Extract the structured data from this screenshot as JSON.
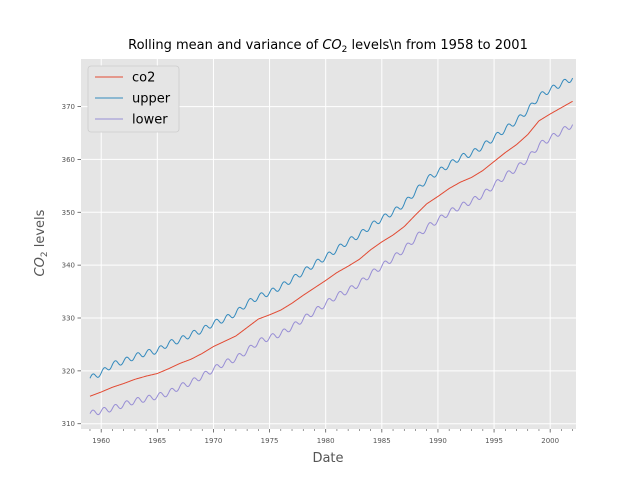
{
  "chart_data": {
    "type": "line",
    "title": {
      "prefix": "Rolling mean and variance of ",
      "italic": "CO",
      "subscript": "2",
      "suffix": " levels\\n from 1958 to 2001"
    },
    "xlabel": "Date",
    "ylabel": {
      "italic": "CO",
      "subscript": "2",
      "suffix": " levels"
    },
    "xlim": [
      1958.2,
      2002.3
    ],
    "ylim": [
      309,
      379
    ],
    "x_ticks": [
      1960,
      1965,
      1970,
      1975,
      1980,
      1985,
      1990,
      1995,
      2000
    ],
    "x_tick_labels": [
      "1960",
      "1965",
      "1970",
      "1975",
      "1980",
      "1985",
      "1990",
      "1995",
      "2000"
    ],
    "y_ticks": [
      310,
      320,
      330,
      340,
      350,
      360,
      370
    ],
    "y_tick_labels": [
      "310",
      "320",
      "330",
      "340",
      "350",
      "360",
      "370"
    ],
    "grid": true,
    "legend_position": "top-left",
    "series": [
      {
        "name": "co2",
        "color": "#E24A33",
        "points": [
          [
            1959.0,
            315.2
          ],
          [
            1960.0,
            316.0
          ],
          [
            1961.0,
            316.9
          ],
          [
            1962.0,
            317.6
          ],
          [
            1963.0,
            318.4
          ],
          [
            1964.0,
            319.0
          ],
          [
            1965.0,
            319.5
          ],
          [
            1966.0,
            320.4
          ],
          [
            1967.0,
            321.4
          ],
          [
            1968.0,
            322.2
          ],
          [
            1969.0,
            323.3
          ],
          [
            1970.0,
            324.6
          ],
          [
            1971.0,
            325.6
          ],
          [
            1972.0,
            326.6
          ],
          [
            1973.0,
            328.2
          ],
          [
            1974.0,
            329.8
          ],
          [
            1975.0,
            330.6
          ],
          [
            1976.0,
            331.5
          ],
          [
            1977.0,
            332.8
          ],
          [
            1978.0,
            334.3
          ],
          [
            1979.0,
            335.7
          ],
          [
            1980.0,
            337.1
          ],
          [
            1981.0,
            338.6
          ],
          [
            1982.0,
            339.8
          ],
          [
            1983.0,
            341.1
          ],
          [
            1984.0,
            342.9
          ],
          [
            1985.0,
            344.4
          ],
          [
            1986.0,
            345.7
          ],
          [
            1987.0,
            347.3
          ],
          [
            1988.0,
            349.5
          ],
          [
            1989.0,
            351.6
          ],
          [
            1990.0,
            353.0
          ],
          [
            1991.0,
            354.5
          ],
          [
            1992.0,
            355.7
          ],
          [
            1993.0,
            356.6
          ],
          [
            1994.0,
            357.9
          ],
          [
            1995.0,
            359.6
          ],
          [
            1996.0,
            361.3
          ],
          [
            1997.0,
            362.8
          ],
          [
            1998.0,
            364.7
          ],
          [
            1999.0,
            367.3
          ],
          [
            2000.0,
            368.6
          ],
          [
            2001.0,
            369.8
          ],
          [
            2002.0,
            371.0
          ]
        ]
      },
      {
        "name": "upper",
        "color": "#348ABD",
        "points": [
          [
            1959.0,
            318.6
          ],
          [
            1960.0,
            319.6
          ],
          [
            1961.0,
            321.2
          ],
          [
            1962.0,
            321.8
          ],
          [
            1963.0,
            322.7
          ],
          [
            1964.0,
            323.4
          ],
          [
            1965.0,
            323.8
          ],
          [
            1966.0,
            325.2
          ],
          [
            1967.0,
            325.8
          ],
          [
            1968.0,
            326.9
          ],
          [
            1969.0,
            327.7
          ],
          [
            1970.0,
            329.0
          ],
          [
            1971.0,
            329.8
          ],
          [
            1972.0,
            330.9
          ],
          [
            1973.0,
            332.8
          ],
          [
            1974.0,
            334.0
          ],
          [
            1975.0,
            334.8
          ],
          [
            1976.0,
            335.9
          ],
          [
            1977.0,
            337.3
          ],
          [
            1978.0,
            338.7
          ],
          [
            1979.0,
            340.2
          ],
          [
            1980.0,
            341.5
          ],
          [
            1981.0,
            343.0
          ],
          [
            1982.0,
            344.5
          ],
          [
            1983.0,
            345.7
          ],
          [
            1984.0,
            347.4
          ],
          [
            1985.0,
            348.8
          ],
          [
            1986.0,
            350.0
          ],
          [
            1987.0,
            351.6
          ],
          [
            1988.0,
            353.9
          ],
          [
            1989.0,
            356.2
          ],
          [
            1990.0,
            357.6
          ],
          [
            1991.0,
            359.0
          ],
          [
            1992.0,
            360.4
          ],
          [
            1993.0,
            361.1
          ],
          [
            1994.0,
            362.5
          ],
          [
            1995.0,
            364.1
          ],
          [
            1996.0,
            365.7
          ],
          [
            1997.0,
            367.3
          ],
          [
            1998.0,
            369.3
          ],
          [
            1999.0,
            371.9
          ],
          [
            2000.0,
            373.2
          ],
          [
            2001.0,
            374.3
          ],
          [
            2002.0,
            375.4
          ]
        ]
      },
      {
        "name": "lower",
        "color": "#988ED5",
        "points": [
          [
            1959.0,
            311.9
          ],
          [
            1960.0,
            312.4
          ],
          [
            1961.0,
            312.9
          ],
          [
            1962.0,
            313.6
          ],
          [
            1963.0,
            314.3
          ],
          [
            1964.0,
            314.7
          ],
          [
            1965.0,
            315.2
          ],
          [
            1966.0,
            315.8
          ],
          [
            1967.0,
            317.0
          ],
          [
            1968.0,
            317.8
          ],
          [
            1969.0,
            319.0
          ],
          [
            1970.0,
            320.3
          ],
          [
            1971.0,
            321.5
          ],
          [
            1972.0,
            322.3
          ],
          [
            1973.0,
            323.8
          ],
          [
            1974.0,
            325.5
          ],
          [
            1975.0,
            326.3
          ],
          [
            1976.0,
            327.0
          ],
          [
            1977.0,
            328.3
          ],
          [
            1978.0,
            329.8
          ],
          [
            1979.0,
            331.2
          ],
          [
            1980.0,
            332.7
          ],
          [
            1981.0,
            334.2
          ],
          [
            1982.0,
            335.2
          ],
          [
            1983.0,
            336.5
          ],
          [
            1984.0,
            338.3
          ],
          [
            1985.0,
            339.8
          ],
          [
            1986.0,
            341.3
          ],
          [
            1987.0,
            343.0
          ],
          [
            1988.0,
            345.1
          ],
          [
            1989.0,
            347.1
          ],
          [
            1990.0,
            348.5
          ],
          [
            1991.0,
            350.0
          ],
          [
            1992.0,
            351.1
          ],
          [
            1993.0,
            352.1
          ],
          [
            1994.0,
            353.3
          ],
          [
            1995.0,
            355.1
          ],
          [
            1996.0,
            356.9
          ],
          [
            1997.0,
            358.3
          ],
          [
            1998.0,
            360.1
          ],
          [
            1999.0,
            362.7
          ],
          [
            2000.0,
            364.0
          ],
          [
            2001.0,
            365.3
          ],
          [
            2002.0,
            366.6
          ]
        ]
      }
    ]
  }
}
